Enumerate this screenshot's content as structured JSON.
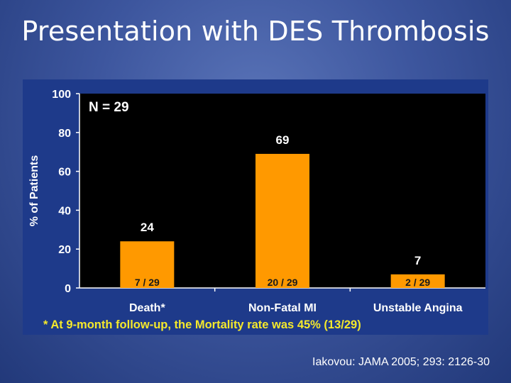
{
  "slide": {
    "title": "Presentation with DES Thrombosis",
    "citation": "Iakovou: JAMA 2005; 293: 2126-30"
  },
  "chart_data": {
    "type": "bar",
    "title": "",
    "sample_label": "N = 29",
    "categories": [
      "Death*",
      "Non-Fatal MI",
      "Unstable Angina"
    ],
    "values": [
      24,
      69,
      7
    ],
    "fraction_labels": [
      "7 / 29",
      "20 / 29",
      "2 / 29"
    ],
    "value_labels": [
      "24",
      "69",
      "7"
    ],
    "ylabel": "% of Patients",
    "xlabel": "",
    "ylim": [
      0,
      100
    ],
    "yticks": [
      0,
      20,
      40,
      60,
      80,
      100
    ],
    "grid": false,
    "footnote": "* At 9-month follow-up, the Mortality rate was 45% (13/29)",
    "colors": {
      "bar": "#ff9900",
      "plot_bg": "#000000",
      "panel_bg": "#1e3a8a",
      "axis_text": "#ffffff",
      "fraction_text": "#1a1a1a",
      "footnote": "#f5e92b"
    }
  }
}
